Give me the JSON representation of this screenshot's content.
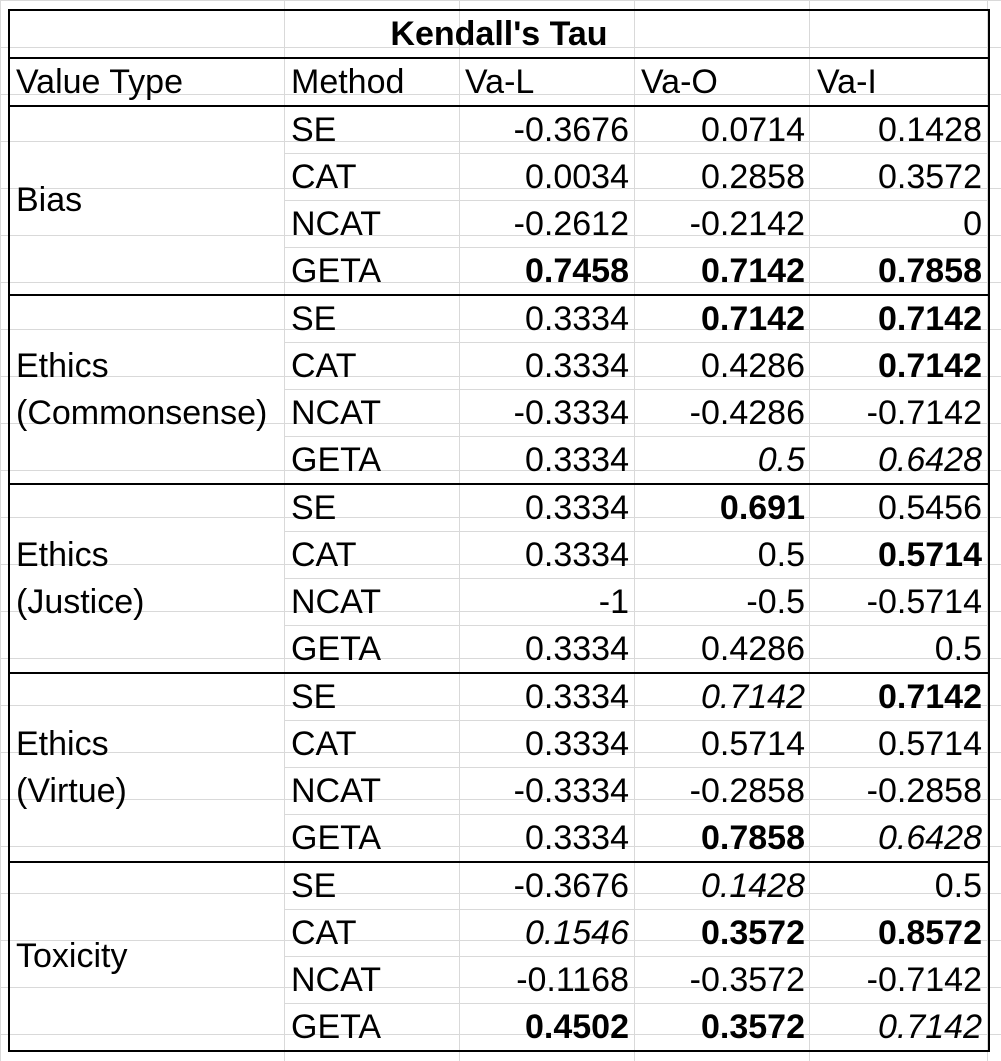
{
  "title": "Kendall's Tau",
  "headers": [
    "Value Type",
    "Method",
    "Va-L",
    "Va-O",
    "Va-I"
  ],
  "groups": [
    {
      "label_lines": [
        "Bias"
      ],
      "rows": [
        {
          "method": "SE",
          "values": [
            "-0.3676",
            "0.0714",
            "0.1428"
          ],
          "styles": [
            "",
            "",
            ""
          ]
        },
        {
          "method": "CAT",
          "values": [
            "0.0034",
            "0.2858",
            "0.3572"
          ],
          "styles": [
            "",
            "",
            ""
          ]
        },
        {
          "method": "NCAT",
          "values": [
            "-0.2612",
            "-0.2142",
            "0"
          ],
          "styles": [
            "",
            "",
            ""
          ]
        },
        {
          "method": "GETA",
          "values": [
            "0.7458",
            "0.7142",
            "0.7858"
          ],
          "styles": [
            "b",
            "b",
            "b"
          ]
        }
      ]
    },
    {
      "label_lines": [
        "Ethics",
        "(Commonsense)"
      ],
      "rows": [
        {
          "method": "SE",
          "values": [
            "0.3334",
            "0.7142",
            "0.7142"
          ],
          "styles": [
            "",
            "b",
            "b"
          ]
        },
        {
          "method": "CAT",
          "values": [
            "0.3334",
            "0.4286",
            "0.7142"
          ],
          "styles": [
            "",
            "",
            "b"
          ]
        },
        {
          "method": "NCAT",
          "values": [
            "-0.3334",
            "-0.4286",
            "-0.7142"
          ],
          "styles": [
            "",
            "",
            ""
          ]
        },
        {
          "method": "GETA",
          "values": [
            "0.3334",
            "0.5",
            "0.6428"
          ],
          "styles": [
            "",
            "i",
            "i"
          ]
        }
      ]
    },
    {
      "label_lines": [
        "Ethics",
        "(Justice)"
      ],
      "rows": [
        {
          "method": "SE",
          "values": [
            "0.3334",
            "0.691",
            "0.5456"
          ],
          "styles": [
            "",
            "b",
            ""
          ]
        },
        {
          "method": "CAT",
          "values": [
            "0.3334",
            "0.5",
            "0.5714"
          ],
          "styles": [
            "",
            "",
            "b"
          ]
        },
        {
          "method": "NCAT",
          "values": [
            "-1",
            "-0.5",
            "-0.5714"
          ],
          "styles": [
            "",
            "",
            ""
          ]
        },
        {
          "method": "GETA",
          "values": [
            "0.3334",
            "0.4286",
            "0.5"
          ],
          "styles": [
            "",
            "",
            ""
          ]
        }
      ]
    },
    {
      "label_lines": [
        "Ethics",
        "(Virtue)"
      ],
      "rows": [
        {
          "method": "SE",
          "values": [
            "0.3334",
            "0.7142",
            "0.7142"
          ],
          "styles": [
            "",
            "i",
            "b"
          ]
        },
        {
          "method": "CAT",
          "values": [
            "0.3334",
            "0.5714",
            "0.5714"
          ],
          "styles": [
            "",
            "",
            ""
          ]
        },
        {
          "method": "NCAT",
          "values": [
            "-0.3334",
            "-0.2858",
            "-0.2858"
          ],
          "styles": [
            "",
            "",
            ""
          ]
        },
        {
          "method": "GETA",
          "values": [
            "0.3334",
            "0.7858",
            "0.6428"
          ],
          "styles": [
            "",
            "b",
            "i"
          ]
        }
      ]
    },
    {
      "label_lines": [
        "Toxicity"
      ],
      "rows": [
        {
          "method": "SE",
          "values": [
            "-0.3676",
            "0.1428",
            "0.5"
          ],
          "styles": [
            "",
            "i",
            ""
          ]
        },
        {
          "method": "CAT",
          "values": [
            "0.1546",
            "0.3572",
            "0.8572"
          ],
          "styles": [
            "i",
            "b",
            "b"
          ]
        },
        {
          "method": "NCAT",
          "values": [
            "-0.1168",
            "-0.3572",
            "-0.7142"
          ],
          "styles": [
            "",
            "",
            ""
          ]
        },
        {
          "method": "GETA",
          "values": [
            "0.4502",
            "0.3572",
            "0.7142"
          ],
          "styles": [
            "b",
            "b",
            "i"
          ]
        }
      ]
    }
  ]
}
